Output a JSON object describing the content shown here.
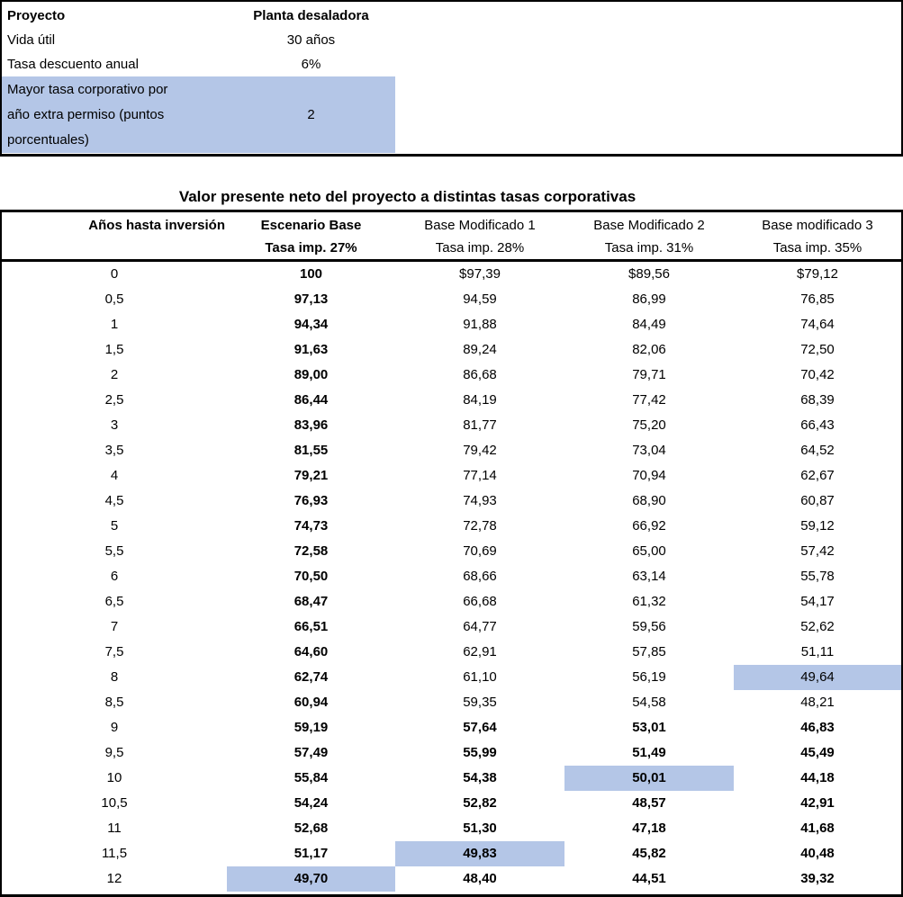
{
  "info_box": {
    "highlight_color": "#b4c6e7",
    "rows": [
      {
        "label": "Proyecto",
        "value": "Planta desaladora",
        "bold": true,
        "highlight": false
      },
      {
        "label": "Vida útil",
        "value": "30 años",
        "bold": false,
        "highlight": false
      },
      {
        "label": "Tasa descuento anual",
        "value": "6%",
        "bold": false,
        "highlight": false
      },
      {
        "label": "Mayor tasa corporativo por año extra permiso (puntos porcentuales)",
        "value": "2",
        "bold": false,
        "highlight": true
      }
    ]
  },
  "table": {
    "title": "Valor presente neto del proyecto a distintas tasas corporativas",
    "columns": [
      {
        "line1": "",
        "line2": "Años hasta inversión",
        "bold": true
      },
      {
        "line1": "Escenario Base",
        "line2": "Tasa imp. 27%",
        "bold": true
      },
      {
        "line1": "Base Modificado 1",
        "line2": "Tasa imp. 28%",
        "bold": false
      },
      {
        "line1": "Base Modificado 2",
        "line2": "Tasa imp. 31%",
        "bold": false
      },
      {
        "line1": "Base modificado 3",
        "line2": "Tasa imp. 35%",
        "bold": false
      }
    ],
    "rows": [
      {
        "years": "0",
        "values": [
          "100",
          "$97,39",
          "$89,56",
          "$79,12"
        ]
      },
      {
        "years": "0,5",
        "values": [
          "97,13",
          "94,59",
          "86,99",
          "76,85"
        ]
      },
      {
        "years": "1",
        "values": [
          "94,34",
          "91,88",
          "84,49",
          "74,64"
        ]
      },
      {
        "years": "1,5",
        "values": [
          "91,63",
          "89,24",
          "82,06",
          "72,50"
        ]
      },
      {
        "years": "2",
        "values": [
          "89,00",
          "86,68",
          "79,71",
          "70,42"
        ]
      },
      {
        "years": "2,5",
        "values": [
          "86,44",
          "84,19",
          "77,42",
          "68,39"
        ]
      },
      {
        "years": "3",
        "values": [
          "83,96",
          "81,77",
          "75,20",
          "66,43"
        ]
      },
      {
        "years": "3,5",
        "values": [
          "81,55",
          "79,42",
          "73,04",
          "64,52"
        ]
      },
      {
        "years": "4",
        "values": [
          "79,21",
          "77,14",
          "70,94",
          "62,67"
        ]
      },
      {
        "years": "4,5",
        "values": [
          "76,93",
          "74,93",
          "68,90",
          "60,87"
        ]
      },
      {
        "years": "5",
        "values": [
          "74,73",
          "72,78",
          "66,92",
          "59,12"
        ]
      },
      {
        "years": "5,5",
        "values": [
          "72,58",
          "70,69",
          "65,00",
          "57,42"
        ]
      },
      {
        "years": "6",
        "values": [
          "70,50",
          "68,66",
          "63,14",
          "55,78"
        ]
      },
      {
        "years": "6,5",
        "values": [
          "68,47",
          "66,68",
          "61,32",
          "54,17"
        ]
      },
      {
        "years": "7",
        "values": [
          "66,51",
          "64,77",
          "59,56",
          "52,62"
        ]
      },
      {
        "years": "7,5",
        "values": [
          "64,60",
          "62,91",
          "57,85",
          "51,11"
        ]
      },
      {
        "years": "8",
        "values": [
          "62,74",
          "61,10",
          "56,19",
          "49,64"
        ]
      },
      {
        "years": "8,5",
        "values": [
          "60,94",
          "59,35",
          "54,58",
          "48,21"
        ]
      },
      {
        "years": "9",
        "values": [
          "59,19",
          "57,64",
          "53,01",
          "46,83"
        ]
      },
      {
        "years": "9,5",
        "values": [
          "57,49",
          "55,99",
          "51,49",
          "45,49"
        ]
      },
      {
        "years": "10",
        "values": [
          "55,84",
          "54,38",
          "50,01",
          "44,18"
        ]
      },
      {
        "years": "10,5",
        "values": [
          "54,24",
          "52,82",
          "48,57",
          "42,91"
        ]
      },
      {
        "years": "11",
        "values": [
          "52,68",
          "51,30",
          "47,18",
          "41,68"
        ]
      },
      {
        "years": "11,5",
        "values": [
          "51,17",
          "49,83",
          "45,82",
          "40,48"
        ]
      },
      {
        "years": "12",
        "values": [
          "49,70",
          "48,40",
          "44,51",
          "39,32"
        ]
      }
    ],
    "format": {
      "highlight_color": "#b4c6e7",
      "bold_value_col_0": true,
      "bold_value_cols_1to3_from_row_index": 18,
      "highlight_cells": [
        {
          "row_index": 16,
          "value_index": 3
        },
        {
          "row_index": 20,
          "value_index": 2
        },
        {
          "row_index": 23,
          "value_index": 1
        },
        {
          "row_index": 24,
          "value_index": 0
        }
      ]
    }
  }
}
